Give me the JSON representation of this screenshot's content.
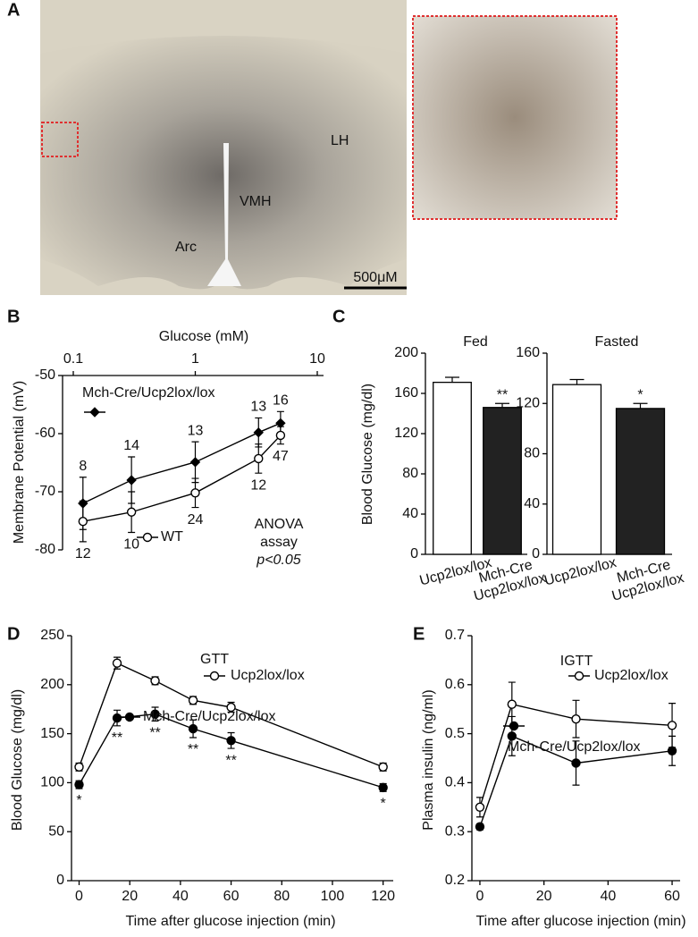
{
  "image_panel": {
    "panel": "A",
    "labels": [
      "LH",
      "VMH",
      "Arc"
    ],
    "scale_bar": "500μM"
  },
  "chart_data": [
    {
      "type": "line",
      "panel": "B",
      "xlabel": "Glucose (mM)",
      "ylabel": "Membrane Potential (mV)",
      "log_x": true,
      "xlim": [
        0.1,
        10
      ],
      "xticks": [
        0.1,
        1,
        10
      ],
      "ylim": [
        -80,
        -50
      ],
      "yticks": [
        -50,
        -60,
        -70,
        -80
      ],
      "x": [
        0.12,
        0.3,
        1,
        3.3,
        5
      ],
      "series": [
        {
          "name": "Mch-Cre/Ucp2lox/lox",
          "color": "#000000",
          "marker": "diamond",
          "marker_fill": "#000000",
          "values": [
            -72.0,
            -68.0,
            -64.9,
            -59.8,
            -58.2
          ],
          "errors": [
            4.5,
            4,
            3.5,
            2.5,
            2
          ],
          "n": [
            8,
            14,
            13,
            13,
            16
          ]
        },
        {
          "name": "WT",
          "color": "#000000",
          "marker": "circle",
          "marker_fill": "#ffffff",
          "values": [
            -75.1,
            -73.5,
            -70.2,
            -64.3,
            -60.3
          ],
          "errors": [
            3.5,
            3.5,
            2.5,
            2.5,
            1.5
          ],
          "n": [
            12,
            10,
            24,
            12,
            47
          ]
        }
      ],
      "annotation": [
        "ANOVA",
        "assay",
        "p<0.05"
      ]
    },
    {
      "type": "bar",
      "panel": "C",
      "title": "Fed",
      "ylabel": "Blood Glucose (mg/dl)",
      "categories": [
        "Ucp2lox/lox",
        "Mch-Cre Ucp2lox/lox"
      ],
      "values": [
        171,
        146
      ],
      "errors": [
        5,
        4
      ],
      "colors": [
        "#ffffff",
        "#222222"
      ],
      "significance": "**",
      "ylim": [
        0,
        200
      ],
      "yticks": [
        0,
        40,
        80,
        120,
        160,
        200
      ]
    },
    {
      "type": "bar",
      "title": "Fasted",
      "categories": [
        "Ucp2lox/lox",
        "Mch-Cre Ucp2lox/lox"
      ],
      "values": [
        135,
        116
      ],
      "errors": [
        4,
        4
      ],
      "colors": [
        "#ffffff",
        "#222222"
      ],
      "significance": "*",
      "ylim": [
        0,
        160
      ],
      "yticks": [
        0,
        40,
        80,
        120,
        160
      ]
    },
    {
      "type": "line",
      "panel": "D",
      "title": "GTT",
      "xlabel": "Time after glucose injection (min)",
      "ylabel": "Blood Glucose (mg/dl)",
      "xlim": [
        -3,
        124
      ],
      "xticks": [
        0,
        20,
        40,
        60,
        80,
        100,
        120
      ],
      "ylim": [
        0,
        250
      ],
      "yticks": [
        0,
        50,
        100,
        150,
        200,
        250
      ],
      "x": [
        0,
        15,
        30,
        45,
        60,
        120
      ],
      "series": [
        {
          "name": "Ucp2lox/lox",
          "color": "#000000",
          "marker": "circle",
          "marker_fill": "#ffffff",
          "values": [
            116,
            222,
            204,
            184,
            177,
            116
          ],
          "errors": [
            4,
            6,
            4,
            4,
            5,
            4
          ]
        },
        {
          "name": "Mch-Cre/Ucp2lox/lox",
          "color": "#000000",
          "marker": "circle",
          "marker_fill": "#000000",
          "values": [
            98,
            166,
            170,
            155,
            143,
            95
          ],
          "errors": [
            4,
            8,
            7,
            9,
            8,
            4
          ],
          "significance": [
            "*",
            "**",
            "**",
            "**",
            "**",
            "*"
          ]
        }
      ]
    },
    {
      "type": "line",
      "panel": "E",
      "title": "IGTT",
      "xlabel": "Time after glucose injection (min)",
      "ylabel": "Plasma insulin (ng/ml)",
      "xlim": [
        -2.5,
        62.5
      ],
      "xticks": [
        0,
        20,
        40,
        60
      ],
      "ylim": [
        0.2,
        0.7
      ],
      "yticks": [
        0.2,
        0.3,
        0.4,
        0.5,
        0.6,
        0.7
      ],
      "x": [
        0,
        10,
        30,
        60
      ],
      "series": [
        {
          "name": "Ucp2lox/lox",
          "color": "#000000",
          "marker": "circle",
          "marker_fill": "#ffffff",
          "values": [
            0.35,
            0.56,
            0.53,
            0.517
          ],
          "errors": [
            0.02,
            0.045,
            0.038,
            0.045
          ]
        },
        {
          "name": "Mch-Cre/Ucp2lox/lox",
          "color": "#000000",
          "marker": "circle",
          "marker_fill": "#000000",
          "values": [
            0.31,
            0.495,
            0.44,
            0.465
          ],
          "errors": [
            0.006,
            0.04,
            0.045,
            0.03
          ]
        }
      ]
    }
  ]
}
